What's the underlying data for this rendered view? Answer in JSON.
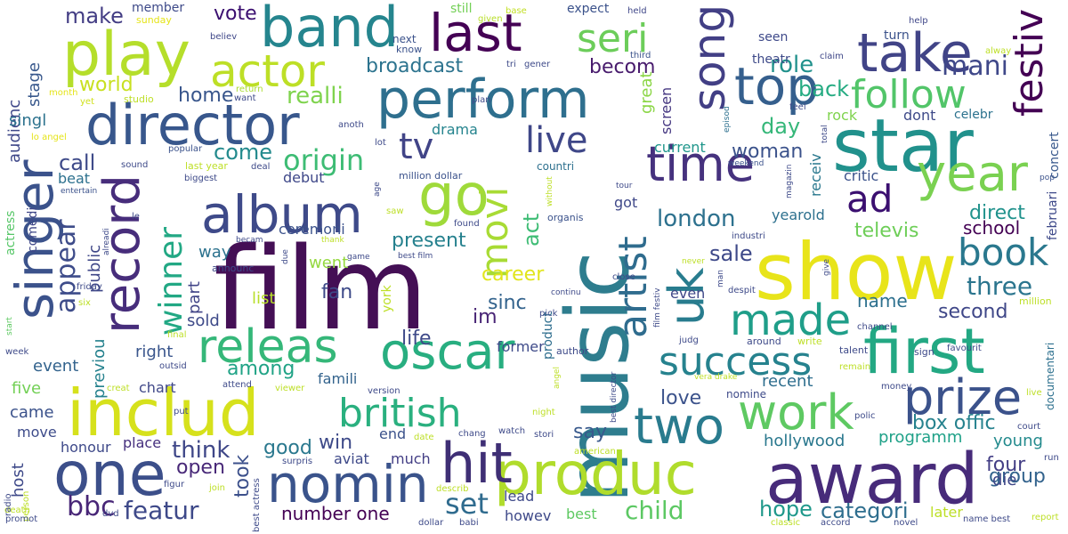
{
  "words": [
    {
      "text": "film",
      "color": "#440f55"
    },
    {
      "text": "show",
      "color": "#e8e41a"
    },
    {
      "text": "music",
      "color": "#2e7d8e"
    },
    {
      "text": "award",
      "color": "#472b7a"
    },
    {
      "text": "includ",
      "color": "#d6e11c"
    },
    {
      "text": "star",
      "color": "#21918c"
    },
    {
      "text": "one",
      "color": "#3c4f8a"
    },
    {
      "text": "produc",
      "color": "#b0dc2c"
    },
    {
      "text": "first",
      "color": "#23a883"
    },
    {
      "text": "play",
      "color": "#b5de2b"
    },
    {
      "text": "director",
      "color": "#38578c"
    },
    {
      "text": "band",
      "color": "#25858e"
    },
    {
      "text": "perform",
      "color": "#2e6f8e"
    },
    {
      "text": "singer",
      "color": "#3b528b"
    },
    {
      "text": "record",
      "color": "#472d7b"
    },
    {
      "text": "hit",
      "color": "#3f2f75"
    },
    {
      "text": "nomin",
      "color": "#3a538b"
    },
    {
      "text": "oscar",
      "color": "#28ae80"
    },
    {
      "text": "album",
      "color": "#3e4a89"
    },
    {
      "text": "go",
      "color": "#9fda3a"
    },
    {
      "text": "last",
      "color": "#440154"
    },
    {
      "text": "take",
      "color": "#414487"
    },
    {
      "text": "top",
      "color": "#355f8d"
    },
    {
      "text": "time",
      "color": "#46327e"
    },
    {
      "text": "year",
      "color": "#7ad151"
    },
    {
      "text": "work",
      "color": "#5ec962"
    },
    {
      "text": "two",
      "color": "#297b8e"
    },
    {
      "text": "prize",
      "color": "#3b528b"
    },
    {
      "text": "song",
      "color": "#423f85"
    },
    {
      "text": "releas",
      "color": "#35b779"
    },
    {
      "text": "actor",
      "color": "#bddf26"
    },
    {
      "text": "movi",
      "color": "#a8db34"
    },
    {
      "text": "artist",
      "color": "#2f6c8e"
    },
    {
      "text": "uk",
      "color": "#287c8e"
    },
    {
      "text": "success",
      "color": "#26828e"
    },
    {
      "text": "made",
      "color": "#1f9e89"
    },
    {
      "text": "british",
      "color": "#2ab07f"
    },
    {
      "text": "follow",
      "color": "#52c569"
    },
    {
      "text": "seri",
      "color": "#6ccd5a"
    },
    {
      "text": "festiv",
      "color": "#440154"
    },
    {
      "text": "book",
      "color": "#2a788e"
    },
    {
      "text": "ad",
      "color": "#3b0f70"
    },
    {
      "text": "tv",
      "color": "#414487"
    },
    {
      "text": "live",
      "color": "#3f4788"
    },
    {
      "text": "winner",
      "color": "#22a884"
    },
    {
      "text": "appear",
      "color": "#3e4c8a"
    },
    {
      "text": "origin",
      "color": "#3dbc74"
    },
    {
      "text": "london",
      "color": "#2d718e"
    },
    {
      "text": "child",
      "color": "#5cc863"
    },
    {
      "text": "featur",
      "color": "#3e4989"
    },
    {
      "text": "mani",
      "color": "#3f4889"
    },
    {
      "text": "bbc",
      "color": "#482677"
    },
    {
      "text": "set",
      "color": "#2f6b8e"
    },
    {
      "text": "hope",
      "color": "#1f988b"
    },
    {
      "text": "categori",
      "color": "#2e6e8e"
    },
    {
      "text": "number one",
      "color": "#440154"
    },
    {
      "text": "box offic",
      "color": "#26828e"
    },
    {
      "text": "group",
      "color": "#33638d"
    },
    {
      "text": "four",
      "color": "#433e85"
    },
    {
      "text": "second",
      "color": "#3f4788"
    },
    {
      "text": "three",
      "color": "#2b758e"
    },
    {
      "text": "name",
      "color": "#2d708e"
    },
    {
      "text": "televis",
      "color": "#6ece58"
    },
    {
      "text": "direct",
      "color": "#20928c"
    },
    {
      "text": "school",
      "color": "#440154"
    },
    {
      "text": "role",
      "color": "#21918c"
    },
    {
      "text": "back",
      "color": "#25ab82"
    },
    {
      "text": "broadcast",
      "color": "#2c738e"
    },
    {
      "text": "becom",
      "color": "#481b6d"
    },
    {
      "text": "vote",
      "color": "#3b0f70"
    },
    {
      "text": "make",
      "color": "#433d84"
    },
    {
      "text": "realli",
      "color": "#7fd34e"
    },
    {
      "text": "world",
      "color": "#c8e020"
    },
    {
      "text": "home",
      "color": "#39568c"
    },
    {
      "text": "come",
      "color": "#238a8d"
    },
    {
      "text": "call",
      "color": "#3e4a89"
    },
    {
      "text": "audienc",
      "color": "#3f4889"
    },
    {
      "text": "stage",
      "color": "#38588c"
    },
    {
      "text": "singl",
      "color": "#2c728e"
    },
    {
      "text": "day",
      "color": "#35b779"
    },
    {
      "text": "woman",
      "color": "#3b528b"
    },
    {
      "text": "act",
      "color": "#3dbc74"
    },
    {
      "text": "present",
      "color": "#26818e"
    },
    {
      "text": "career",
      "color": "#e1e51c"
    },
    {
      "text": "sale",
      "color": "#3e4989"
    },
    {
      "text": "im",
      "color": "#482475"
    },
    {
      "text": "sinc",
      "color": "#33638d"
    },
    {
      "text": "fan",
      "color": "#3e4a89"
    },
    {
      "text": "life",
      "color": "#3e4a89"
    },
    {
      "text": "among",
      "color": "#20a386"
    },
    {
      "text": "think",
      "color": "#3f4788"
    },
    {
      "text": "open",
      "color": "#482878"
    },
    {
      "text": "took",
      "color": "#3c508b"
    },
    {
      "text": "good",
      "color": "#2a788e"
    },
    {
      "text": "win",
      "color": "#3e4a89"
    },
    {
      "text": "love",
      "color": "#3b528b"
    },
    {
      "text": "say",
      "color": "#38598c"
    },
    {
      "text": "recent",
      "color": "#2e6e8e"
    },
    {
      "text": "hollywood",
      "color": "#2a788e"
    },
    {
      "text": "programm",
      "color": "#1fa188"
    },
    {
      "text": "young",
      "color": "#238a8d"
    },
    {
      "text": "die",
      "color": "#3f4788"
    },
    {
      "text": "right",
      "color": "#39558c"
    },
    {
      "text": "previou",
      "color": "#26828e"
    },
    {
      "text": "part",
      "color": "#414487"
    },
    {
      "text": "sold",
      "color": "#3e4a89"
    },
    {
      "text": "list",
      "color": "#b8de29"
    },
    {
      "text": "went",
      "color": "#95d840"
    },
    {
      "text": "public",
      "color": "#3f4788"
    },
    {
      "text": "way",
      "color": "#2c728e"
    },
    {
      "text": "ceremoni",
      "color": "#3b528b"
    },
    {
      "text": "event",
      "color": "#33638d"
    },
    {
      "text": "five",
      "color": "#73d056"
    },
    {
      "text": "came",
      "color": "#3b528b"
    },
    {
      "text": "move",
      "color": "#3e4c8a"
    },
    {
      "text": "host",
      "color": "#3e4989"
    },
    {
      "text": "honour",
      "color": "#3e4989"
    },
    {
      "text": "place",
      "color": "#46307e"
    },
    {
      "text": "chart",
      "color": "#3f4788"
    },
    {
      "text": "beat",
      "color": "#2d718e"
    },
    {
      "text": "great",
      "color": "#8bd646"
    },
    {
      "text": "screen",
      "color": "#453781"
    },
    {
      "text": "current",
      "color": "#1f968b"
    },
    {
      "text": "debut",
      "color": "#3f4889"
    },
    {
      "text": "receiv",
      "color": "#2a788e"
    },
    {
      "text": "got",
      "color": "#3f4889"
    },
    {
      "text": "yearold",
      "color": "#2d708e"
    },
    {
      "text": "even",
      "color": "#3f4788"
    },
    {
      "text": "drama",
      "color": "#25848e"
    },
    {
      "text": "former",
      "color": "#3e4a89"
    },
    {
      "text": "much",
      "color": "#433e85"
    },
    {
      "text": "end",
      "color": "#3b528b"
    },
    {
      "text": "famili",
      "color": "#33638d"
    },
    {
      "text": "aviat",
      "color": "#3e4989"
    },
    {
      "text": "lead",
      "color": "#3e4989"
    },
    {
      "text": "howev",
      "color": "#3e4989"
    },
    {
      "text": "best",
      "color": "#5ec962"
    },
    {
      "text": "later",
      "color": "#bddf26"
    },
    {
      "text": "critic",
      "color": "#3b528b"
    },
    {
      "text": "rock",
      "color": "#7fd34e"
    },
    {
      "text": "dont",
      "color": "#3e4a89"
    },
    {
      "text": "celebr",
      "color": "#2c728e"
    },
    {
      "text": "concert",
      "color": "#38588c"
    },
    {
      "text": "februari",
      "color": "#3e4989"
    },
    {
      "text": "actress",
      "color": "#56c667"
    },
    {
      "text": "comedi",
      "color": "#3f4788"
    },
    {
      "text": "product",
      "color": "#2e6e8e"
    },
    {
      "text": "nomine",
      "color": "#3e4a89"
    },
    {
      "text": "documentari",
      "color": "#2d708e"
    },
    {
      "text": "million dollar",
      "color": "#3b528b"
    },
    {
      "text": "member",
      "color": "#3e4a89"
    },
    {
      "text": "still",
      "color": "#73d056"
    },
    {
      "text": "expect",
      "color": "#3b528b"
    },
    {
      "text": "seen",
      "color": "#3e4989"
    },
    {
      "text": "turn",
      "color": "#3b528b"
    },
    {
      "text": "theatr",
      "color": "#3e4a89"
    },
    {
      "text": "sunday",
      "color": "#e5e419"
    },
    {
      "text": "believ",
      "color": "#3f4788"
    },
    {
      "text": "next",
      "color": "#3b528b"
    },
    {
      "text": "know",
      "color": "#3b528b"
    },
    {
      "text": "given",
      "color": "#b8de29"
    },
    {
      "text": "base",
      "color": "#c2df23"
    },
    {
      "text": "held",
      "color": "#3f4788"
    },
    {
      "text": "third",
      "color": "#3b528b"
    },
    {
      "text": "help",
      "color": "#3f4788"
    },
    {
      "text": "alway",
      "color": "#bddf26"
    },
    {
      "text": "claim",
      "color": "#3f4788"
    },
    {
      "text": "feel",
      "color": "#3e4a89"
    },
    {
      "text": "episod",
      "color": "#2d708e"
    },
    {
      "text": "month",
      "color": "#e5e419"
    },
    {
      "text": "yet",
      "color": "#d0e11c"
    },
    {
      "text": "studio",
      "color": "#bddf26"
    },
    {
      "text": "return",
      "color": "#aadc32"
    },
    {
      "text": "want",
      "color": "#3e4a89"
    },
    {
      "text": "anoth",
      "color": "#3e4a89"
    },
    {
      "text": "plan",
      "color": "#3e4a89"
    },
    {
      "text": "lo angel",
      "color": "#e5e419"
    },
    {
      "text": "lot",
      "color": "#3e4a89"
    },
    {
      "text": "popular",
      "color": "#3b528b"
    },
    {
      "text": "last year",
      "color": "#bddf26"
    },
    {
      "text": "biggest",
      "color": "#3e4a89"
    },
    {
      "text": "deal",
      "color": "#3e4a89"
    },
    {
      "text": "sound",
      "color": "#3e4a89"
    },
    {
      "text": "entertain",
      "color": "#3b528b"
    },
    {
      "text": "countri",
      "color": "#2d708e"
    },
    {
      "text": "total",
      "color": "#3e4a89"
    },
    {
      "text": "magazin",
      "color": "#3e4a89"
    },
    {
      "text": "weekend",
      "color": "#3b528b"
    },
    {
      "text": "pop",
      "color": "#3b528b"
    },
    {
      "text": "tri",
      "color": "#3e4a89"
    },
    {
      "text": "gener",
      "color": "#3e4a89"
    },
    {
      "text": "age",
      "color": "#3e4a89"
    },
    {
      "text": "saw",
      "color": "#bddf26"
    },
    {
      "text": "found",
      "color": "#3e4a89"
    },
    {
      "text": "without",
      "color": "#bddf26"
    },
    {
      "text": "organis",
      "color": "#3b528b"
    },
    {
      "text": "tour",
      "color": "#3e4a89"
    },
    {
      "text": "give",
      "color": "#3e4a89"
    },
    {
      "text": "industri",
      "color": "#3e4a89"
    },
    {
      "text": "le",
      "color": "#3e4a89"
    },
    {
      "text": "alreadi",
      "color": "#3e4a89"
    },
    {
      "text": "announc",
      "color": "#3e4a89"
    },
    {
      "text": "becam",
      "color": "#3e4a89"
    },
    {
      "text": "thank",
      "color": "#bddf26"
    },
    {
      "text": "best film",
      "color": "#3e4a89"
    },
    {
      "text": "due",
      "color": "#3e4a89"
    },
    {
      "text": "game",
      "color": "#3e4a89"
    },
    {
      "text": "friday",
      "color": "#3e4a89"
    },
    {
      "text": "six",
      "color": "#bddf26"
    },
    {
      "text": "start",
      "color": "#5ec962"
    },
    {
      "text": "week",
      "color": "#3e4a89"
    },
    {
      "text": "final",
      "color": "#bddf26"
    },
    {
      "text": "outsid",
      "color": "#3e4a89"
    },
    {
      "text": "york",
      "color": "#bddf26"
    },
    {
      "text": "continu",
      "color": "#3e4a89"
    },
    {
      "text": "pick",
      "color": "#3e4a89"
    },
    {
      "text": "close",
      "color": "#3e4a89"
    },
    {
      "text": "film festiv",
      "color": "#3e4a89"
    },
    {
      "text": "never",
      "color": "#bddf26"
    },
    {
      "text": "man",
      "color": "#3e4a89"
    },
    {
      "text": "despit",
      "color": "#3e4a89"
    },
    {
      "text": "million",
      "color": "#bddf26"
    },
    {
      "text": "channel",
      "color": "#3e4a89"
    },
    {
      "text": "favourit",
      "color": "#3e4a89"
    },
    {
      "text": "judg",
      "color": "#3e4a89"
    },
    {
      "text": "around",
      "color": "#3e4a89"
    },
    {
      "text": "write",
      "color": "#bddf26"
    },
    {
      "text": "talent",
      "color": "#3e4a89"
    },
    {
      "text": "sign",
      "color": "#3e4a89"
    },
    {
      "text": "remain",
      "color": "#bddf26"
    },
    {
      "text": "author",
      "color": "#3e4a89"
    },
    {
      "text": "angel",
      "color": "#bddf26"
    },
    {
      "text": "best director",
      "color": "#3e4a89"
    },
    {
      "text": "vera drake",
      "color": "#bddf26"
    },
    {
      "text": "money",
      "color": "#3e4a89"
    },
    {
      "text": "live2",
      "color": "#bddf26"
    },
    {
      "text": "court",
      "color": "#3e4a89"
    },
    {
      "text": "run",
      "color": "#3e4a89"
    },
    {
      "text": "polic",
      "color": "#3e4a89"
    },
    {
      "text": "creat",
      "color": "#bddf26"
    },
    {
      "text": "attend",
      "color": "#3e4a89"
    },
    {
      "text": "viewer",
      "color": "#bddf26"
    },
    {
      "text": "version",
      "color": "#3e4a89"
    },
    {
      "text": "night",
      "color": "#bddf26"
    },
    {
      "text": "put",
      "color": "#3e4a89"
    },
    {
      "text": "chang",
      "color": "#3e4a89"
    },
    {
      "text": "watch",
      "color": "#3e4a89"
    },
    {
      "text": "date",
      "color": "#bddf26"
    },
    {
      "text": "stori",
      "color": "#3e4a89"
    },
    {
      "text": "american",
      "color": "#bddf26"
    },
    {
      "text": "novel",
      "color": "#3e4a89"
    },
    {
      "text": "surpris",
      "color": "#3e4a89"
    },
    {
      "text": "figur",
      "color": "#3e4a89"
    },
    {
      "text": "join",
      "color": "#bddf26"
    },
    {
      "text": "describ",
      "color": "#bddf26"
    },
    {
      "text": "death",
      "color": "#bddf26"
    },
    {
      "text": "radio",
      "color": "#3e4a89"
    },
    {
      "text": "person",
      "color": "#bddf26"
    },
    {
      "text": "promot",
      "color": "#3e4a89"
    },
    {
      "text": "dvd",
      "color": "#3e4a89"
    },
    {
      "text": "best actress",
      "color": "#3e4a89"
    },
    {
      "text": "dollar",
      "color": "#3e4a89"
    },
    {
      "text": "babi",
      "color": "#3e4a89"
    },
    {
      "text": "classic",
      "color": "#bddf26"
    },
    {
      "text": "accord",
      "color": "#3e4a89"
    },
    {
      "text": "name best",
      "color": "#3e4a89"
    },
    {
      "text": "report",
      "color": "#bddf26"
    }
  ]
}
